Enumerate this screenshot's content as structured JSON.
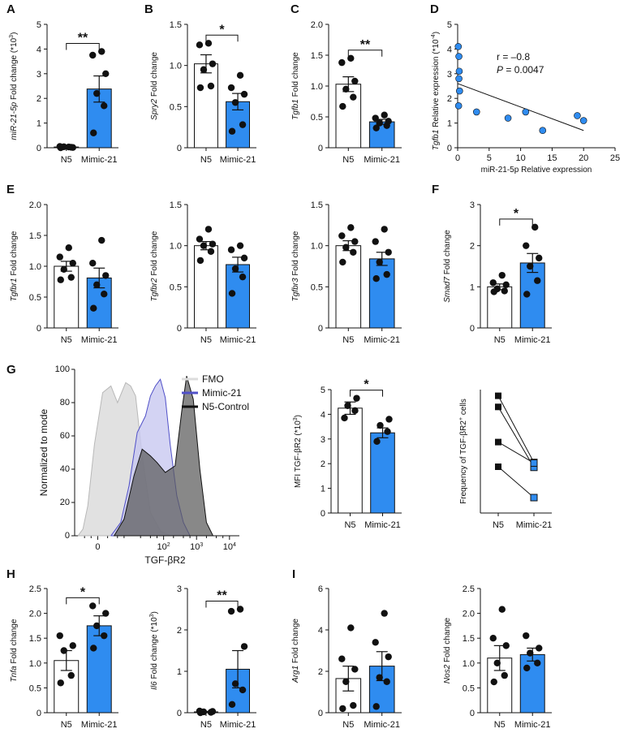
{
  "colors": {
    "blue": "#2f8cf0",
    "white": "#ffffff",
    "black": "#111111",
    "fmo_fill": "#dcdcdc",
    "fmo_line": "#b8b8b8",
    "mimic_fill": "#c8c8f0",
    "mimic_line": "#5050c8",
    "n5_fill": "#5a5a5a",
    "n5_line": "#111111"
  },
  "chart_data": [
    {
      "id": "A",
      "panel_label": "A",
      "type": "bar",
      "categories": [
        "N5",
        "Mimic-21"
      ],
      "ylabel_italic": "miR-21-5p",
      "ylabel_rest": " Fold change (*10",
      "ylabel_sup": "3",
      "ylabel_close": ")",
      "ylim": [
        0,
        5
      ],
      "yticks": [
        "0",
        "1",
        "2",
        "3",
        "4",
        "5"
      ],
      "means": [
        0.03,
        2.38
      ],
      "sem": [
        0.02,
        0.53
      ],
      "points": [
        [
          0.0,
          0.02,
          0.04,
          0.01,
          0.05,
          0.03
        ],
        [
          0.6,
          1.7,
          2.2,
          3.0,
          3.75,
          3.9
        ]
      ],
      "sig": "**"
    },
    {
      "id": "B",
      "panel_label": "B",
      "type": "bar",
      "categories": [
        "N5",
        "Mimic-21"
      ],
      "ylabel_italic": "Spry2",
      "ylabel_rest": " Fold change",
      "ylim": [
        0,
        1.5
      ],
      "yticks": [
        "0",
        "0.5",
        "1.0",
        "1.5"
      ],
      "means": [
        1.02,
        0.56
      ],
      "sem": [
        0.11,
        0.1
      ],
      "points": [
        [
          0.73,
          0.75,
          0.95,
          1.02,
          1.25,
          1.27
        ],
        [
          0.2,
          0.28,
          0.55,
          0.65,
          0.73,
          0.88
        ]
      ],
      "sig": "*"
    },
    {
      "id": "C",
      "panel_label": "C",
      "type": "bar",
      "categories": [
        "N5",
        "Mimic-21"
      ],
      "ylabel_italic": "Tgfb1",
      "ylabel_rest": " Fold change",
      "ylim": [
        0,
        2.0
      ],
      "yticks": [
        "0",
        "0.5",
        "1.0",
        "1.5",
        "2.0"
      ],
      "means": [
        1.03,
        0.42
      ],
      "sem": [
        0.12,
        0.04
      ],
      "points": [
        [
          0.67,
          0.82,
          0.95,
          1.08,
          1.38,
          1.45
        ],
        [
          0.32,
          0.36,
          0.4,
          0.43,
          0.48,
          0.53
        ]
      ],
      "sig": "**"
    },
    {
      "id": "D",
      "panel_label": "D",
      "type": "scatter",
      "xlabel": "miR-21-5p Relative expression",
      "ylabel_italic": "Tgfb1",
      "ylabel_rest": " Relative expression (*10",
      "ylabel_sup": "-4",
      "ylabel_close": ")",
      "xlim": [
        0,
        25
      ],
      "ylim": [
        0,
        5
      ],
      "xticks": [
        "0",
        "5",
        "10",
        "15",
        "20",
        "25"
      ],
      "yticks": [
        "0",
        "1",
        "2",
        "3",
        "4",
        "5"
      ],
      "x": [
        0.1,
        0.2,
        0.25,
        0.3,
        0.15,
        0.2,
        3,
        8,
        10.8,
        13.5,
        19,
        20
      ],
      "y": [
        4.1,
        3.7,
        3.1,
        2.3,
        1.7,
        2.8,
        1.45,
        1.2,
        1.45,
        0.7,
        1.3,
        1.1
      ],
      "fit": {
        "x0": 0,
        "y0": 2.6,
        "x1": 20,
        "y1": 0.7
      },
      "r_text": "r = –0.8",
      "p_label": "P",
      "p_value": " = 0.0047"
    },
    {
      "id": "E1",
      "panel_label": "E",
      "type": "bar",
      "categories": [
        "N5",
        "Mimic-21"
      ],
      "ylabel_italic": "Tgfbr1",
      "ylabel_rest": " Fold change",
      "ylim": [
        0,
        2.0
      ],
      "yticks": [
        "0",
        "0.5",
        "1.0",
        "1.5",
        "2.0"
      ],
      "means": [
        1.0,
        0.81
      ],
      "sem": [
        0.08,
        0.16
      ],
      "points": [
        [
          0.78,
          0.82,
          0.95,
          1.05,
          1.15,
          1.3
        ],
        [
          0.32,
          0.55,
          0.7,
          0.85,
          1.05,
          1.42
        ]
      ],
      "sig": ""
    },
    {
      "id": "E2",
      "panel_label": "",
      "type": "bar",
      "categories": [
        "N5",
        "Mimic-21"
      ],
      "ylabel_italic": "Tgfbr2",
      "ylabel_rest": " Fold change",
      "ylim": [
        0,
        1.5
      ],
      "yticks": [
        "0",
        "0.5",
        "1.0",
        "1.5"
      ],
      "means": [
        1.0,
        0.77
      ],
      "sem": [
        0.05,
        0.09
      ],
      "points": [
        [
          0.82,
          0.93,
          1.0,
          1.02,
          1.08,
          1.2
        ],
        [
          0.42,
          0.62,
          0.72,
          0.85,
          0.95,
          1.0
        ]
      ],
      "sig": ""
    },
    {
      "id": "E3",
      "panel_label": "",
      "type": "bar",
      "categories": [
        "N5",
        "Mimic-21"
      ],
      "ylabel_italic": "Tgfbr3",
      "ylabel_rest": " Fold change",
      "ylim": [
        0,
        1.5
      ],
      "yticks": [
        "0",
        "0.5",
        "1.0",
        "1.5"
      ],
      "means": [
        1.0,
        0.84
      ],
      "sem": [
        0.06,
        0.08
      ],
      "points": [
        [
          0.8,
          0.92,
          0.98,
          1.05,
          1.12,
          1.22
        ],
        [
          0.6,
          0.65,
          0.8,
          0.92,
          1.05,
          1.2
        ]
      ],
      "sig": ""
    },
    {
      "id": "F",
      "panel_label": "F",
      "type": "bar",
      "categories": [
        "N5",
        "Mimic-21"
      ],
      "ylabel_italic": "Smad7",
      "ylabel_rest": " Fold change",
      "ylim": [
        0,
        3
      ],
      "yticks": [
        "0",
        "1",
        "2",
        "3"
      ],
      "means": [
        1.0,
        1.58
      ],
      "sem": [
        0.07,
        0.23
      ],
      "points": [
        [
          0.88,
          0.9,
          0.95,
          1.05,
          1.1,
          1.28
        ],
        [
          0.82,
          1.15,
          1.5,
          1.7,
          2.0,
          2.45
        ]
      ],
      "sig": "*"
    },
    {
      "id": "G",
      "panel_label": "G",
      "type": "histogram",
      "ylabel": "Normalized to mode",
      "xlabel": "TGF-βR2",
      "yticks": [
        "0",
        "20",
        "40",
        "60",
        "80",
        "100"
      ],
      "ylim": [
        0,
        100
      ],
      "xticks": [
        {
          "pos": 0,
          "label": "0"
        },
        {
          "pos": 2,
          "label": "10",
          "sup": "2"
        },
        {
          "pos": 3,
          "label": "10",
          "sup": "3"
        },
        {
          "pos": 4,
          "label": "10",
          "sup": "4"
        }
      ],
      "legend": [
        "FMO",
        "Mimic-21",
        "N5-Control"
      ],
      "series": [
        {
          "name": "FMO",
          "points": [
            [
              -0.6,
              0
            ],
            [
              -0.45,
              4
            ],
            [
              -0.3,
              18
            ],
            [
              -0.1,
              55
            ],
            [
              0.15,
              86
            ],
            [
              0.4,
              90
            ],
            [
              0.6,
              80
            ],
            [
              0.85,
              92
            ],
            [
              1.0,
              90
            ],
            [
              1.15,
              84
            ],
            [
              1.35,
              48
            ],
            [
              1.6,
              14
            ],
            [
              1.9,
              3
            ],
            [
              2.2,
              0
            ]
          ]
        },
        {
          "name": "Mimic-21",
          "points": [
            [
              0.4,
              0
            ],
            [
              0.7,
              8
            ],
            [
              0.95,
              30
            ],
            [
              1.2,
              62
            ],
            [
              1.45,
              72
            ],
            [
              1.6,
              84
            ],
            [
              1.75,
              90
            ],
            [
              1.9,
              94
            ],
            [
              2.05,
              83
            ],
            [
              2.2,
              55
            ],
            [
              2.4,
              24
            ],
            [
              2.6,
              8
            ],
            [
              2.8,
              0
            ]
          ]
        },
        {
          "name": "N5-Control",
          "points": [
            [
              0.5,
              0
            ],
            [
              0.8,
              10
            ],
            [
              1.1,
              36
            ],
            [
              1.35,
              52
            ],
            [
              1.6,
              48
            ],
            [
              1.8,
              44
            ],
            [
              2.05,
              38
            ],
            [
              2.35,
              42
            ],
            [
              2.55,
              75
            ],
            [
              2.7,
              96
            ],
            [
              2.9,
              82
            ],
            [
              3.1,
              40
            ],
            [
              3.3,
              8
            ],
            [
              3.5,
              0
            ]
          ]
        }
      ]
    },
    {
      "id": "G2",
      "panel_label": "",
      "type": "bar",
      "categories": [
        "N5",
        "Mimic-21"
      ],
      "ylabel_text": "MFI TGF-βR2 (*10",
      "ylabel_sup": "3",
      "ylabel_close": ")",
      "ylim": [
        0,
        5
      ],
      "yticks": [
        "0",
        "1",
        "2",
        "3",
        "4",
        "5"
      ],
      "means": [
        4.25,
        3.25
      ],
      "sem": [
        0.25,
        0.2
      ],
      "points": [
        [
          3.85,
          4.15,
          4.35,
          4.65
        ],
        [
          2.9,
          3.3,
          3.55,
          3.8
        ]
      ],
      "sig": "*"
    },
    {
      "id": "G3",
      "panel_label": "",
      "type": "paired",
      "categories": [
        "N5",
        "Mimic-21"
      ],
      "ylabel_text": "Frequency of TGF-βR2",
      "ylabel_sup": "+",
      "ylabel_close": " cells",
      "ylim": [
        0,
        20
      ],
      "pairs": [
        [
          19,
          8.2
        ],
        [
          17.2,
          7.4
        ],
        [
          11.5,
          8.1
        ],
        [
          7.5,
          2.5
        ]
      ]
    },
    {
      "id": "H1",
      "panel_label": "H",
      "type": "bar",
      "categories": [
        "N5",
        "Mimic-21"
      ],
      "ylabel_italic": "Tnfa",
      "ylabel_rest": " Fold change",
      "ylim": [
        0,
        2.5
      ],
      "yticks": [
        "0",
        "0.5",
        "1.0",
        "1.5",
        "2.0",
        "2.5"
      ],
      "means": [
        1.05,
        1.75
      ],
      "sem": [
        0.2,
        0.2
      ],
      "points": [
        [
          0.6,
          0.75,
          1.25,
          1.35,
          1.55
        ],
        [
          1.3,
          1.55,
          1.75,
          2.0,
          2.15
        ]
      ],
      "sig": "*"
    },
    {
      "id": "H2",
      "panel_label": "",
      "type": "bar",
      "categories": [
        "N5",
        "Mimic-21"
      ],
      "ylabel_italic": "Il6",
      "ylabel_rest": " Fold change (*10",
      "ylabel_sup": "3",
      "ylabel_close": ")",
      "ylim": [
        0,
        3
      ],
      "yticks": [
        "0",
        "1",
        "2",
        "3"
      ],
      "means": [
        0.02,
        1.05
      ],
      "sem": [
        0.01,
        0.45
      ],
      "points": [
        [
          0.0,
          0.01,
          0.02,
          0.03,
          0.04
        ],
        [
          0.2,
          0.55,
          0.7,
          1.6,
          2.45,
          2.5
        ]
      ],
      "sig": "**"
    },
    {
      "id": "I1",
      "panel_label": "I",
      "type": "bar",
      "categories": [
        "N5",
        "Mimic-21"
      ],
      "ylabel_italic": "Arg1",
      "ylabel_rest": " Fold change",
      "ylim": [
        0,
        6
      ],
      "yticks": [
        "0",
        "2",
        "4",
        "6"
      ],
      "means": [
        1.65,
        2.25
      ],
      "sem": [
        0.6,
        0.7
      ],
      "points": [
        [
          0.2,
          0.35,
          1.5,
          2.1,
          2.6,
          4.1
        ],
        [
          0.3,
          1.5,
          1.7,
          2.7,
          3.4,
          4.8
        ]
      ],
      "sig": ""
    },
    {
      "id": "I2",
      "panel_label": "",
      "type": "bar",
      "categories": [
        "N5",
        "Mimic-21"
      ],
      "ylabel_italic": "Nos2",
      "ylabel_rest": " Fold change",
      "ylim": [
        0,
        2.5
      ],
      "yticks": [
        "0",
        "0.5",
        "1.0",
        "1.5",
        "2.0",
        "2.5"
      ],
      "means": [
        1.1,
        1.17
      ],
      "sem": [
        0.25,
        0.13
      ],
      "points": [
        [
          0.62,
          0.75,
          1.0,
          1.35,
          1.5,
          2.08
        ],
        [
          0.9,
          1.0,
          1.2,
          1.3,
          1.55
        ]
      ],
      "sig": ""
    }
  ]
}
